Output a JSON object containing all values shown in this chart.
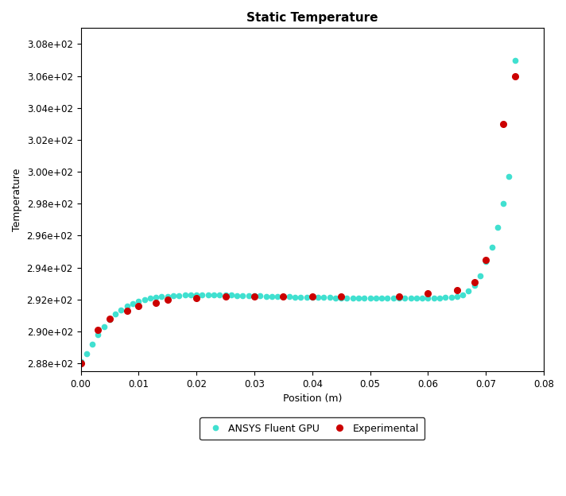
{
  "title": "Static Temperature",
  "xlabel": "Position (m)",
  "ylabel": "Temperature",
  "xlim": [
    0,
    0.08
  ],
  "ylim": [
    287.5,
    309.0
  ],
  "fluent_x": [
    0.0,
    0.001,
    0.002,
    0.003,
    0.004,
    0.005,
    0.006,
    0.007,
    0.008,
    0.009,
    0.01,
    0.011,
    0.012,
    0.013,
    0.014,
    0.015,
    0.016,
    0.017,
    0.018,
    0.019,
    0.02,
    0.021,
    0.022,
    0.023,
    0.024,
    0.025,
    0.026,
    0.027,
    0.028,
    0.029,
    0.03,
    0.031,
    0.032,
    0.033,
    0.034,
    0.035,
    0.036,
    0.037,
    0.038,
    0.039,
    0.04,
    0.041,
    0.042,
    0.043,
    0.044,
    0.045,
    0.046,
    0.047,
    0.048,
    0.049,
    0.05,
    0.051,
    0.052,
    0.053,
    0.054,
    0.055,
    0.056,
    0.057,
    0.058,
    0.059,
    0.06,
    0.061,
    0.062,
    0.063,
    0.064,
    0.065,
    0.066,
    0.067,
    0.068,
    0.069,
    0.07,
    0.071,
    0.072,
    0.073,
    0.074,
    0.075
  ],
  "fluent_y": [
    288.1,
    288.6,
    289.2,
    289.8,
    290.3,
    290.75,
    291.1,
    291.35,
    291.6,
    291.75,
    291.9,
    292.0,
    292.08,
    292.13,
    292.18,
    292.2,
    292.22,
    292.25,
    292.27,
    292.28,
    292.29,
    292.3,
    292.3,
    292.3,
    292.29,
    292.28,
    292.27,
    292.26,
    292.25,
    292.24,
    292.23,
    292.22,
    292.21,
    292.2,
    292.19,
    292.18,
    292.17,
    292.16,
    292.15,
    292.14,
    292.13,
    292.13,
    292.12,
    292.12,
    292.11,
    292.11,
    292.1,
    292.1,
    292.1,
    292.09,
    292.09,
    292.09,
    292.09,
    292.09,
    292.09,
    292.09,
    292.09,
    292.09,
    292.09,
    292.1,
    292.1,
    292.1,
    292.11,
    292.12,
    292.15,
    292.2,
    292.3,
    292.55,
    292.9,
    293.5,
    294.4,
    295.3,
    296.5,
    298.0,
    299.7,
    307.0
  ],
  "exp_x": [
    0.0,
    0.003,
    0.005,
    0.008,
    0.01,
    0.013,
    0.015,
    0.02,
    0.025,
    0.03,
    0.035,
    0.04,
    0.045,
    0.055,
    0.06,
    0.065,
    0.068,
    0.07,
    0.073,
    0.075
  ],
  "exp_y": [
    288.0,
    290.1,
    290.8,
    291.3,
    291.6,
    291.8,
    292.0,
    292.1,
    292.2,
    292.2,
    292.2,
    292.2,
    292.2,
    292.2,
    292.4,
    292.6,
    293.1,
    294.5,
    303.0,
    306.0
  ],
  "fluent_color": "#40E0D0",
  "exp_color": "#CC0000",
  "fluent_label": "ANSYS Fluent GPU",
  "exp_label": "Experimental",
  "fluent_marker": "o",
  "exp_marker": "o",
  "fluent_markersize": 4.5,
  "exp_markersize": 5.5,
  "title_fontsize": 11,
  "label_fontsize": 9,
  "tick_fontsize": 8.5
}
